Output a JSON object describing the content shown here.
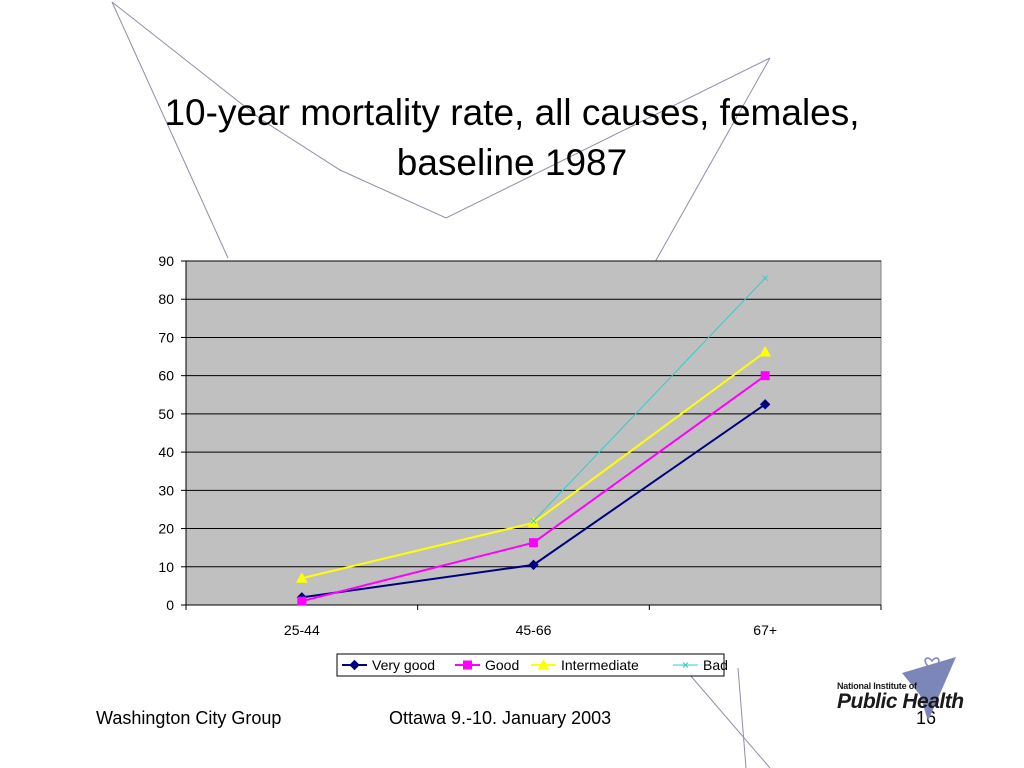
{
  "slide": {
    "title_line1": "10-year mortality rate, all causes, females,",
    "title_line2": "baseline 1987",
    "footer_left": "Washington City Group",
    "footer_center": "Ottawa 9.-10. January 2003",
    "page_number": "16"
  },
  "logo": {
    "line1": "National Institute of",
    "line2": "Public Health",
    "icon": "heart-bird-icon",
    "color": "#7d86b8"
  },
  "chart_data": {
    "type": "line",
    "title": "",
    "xlabel": "",
    "ylabel": "",
    "categories": [
      "25-44",
      "45-66",
      "67+"
    ],
    "ylim": [
      0,
      90
    ],
    "yticks": [
      0,
      10,
      20,
      30,
      40,
      50,
      60,
      70,
      80,
      90
    ],
    "grid": true,
    "plot_background": "#c0c0c0",
    "legend_position": "bottom",
    "series": [
      {
        "name": "Very good",
        "values": [
          2,
          10.5,
          52.5
        ],
        "color": "#000080",
        "marker": "diamond"
      },
      {
        "name": "Good",
        "values": [
          1,
          16.3,
          60
        ],
        "color": "#ff00ff",
        "marker": "square"
      },
      {
        "name": "Intermediate",
        "values": [
          7,
          21.5,
          66.2
        ],
        "color": "#ffff00",
        "marker": "triangle"
      },
      {
        "name": "Bad",
        "values": [
          null,
          22,
          85.5
        ],
        "color": "#33cccc",
        "marker": "x"
      }
    ]
  }
}
